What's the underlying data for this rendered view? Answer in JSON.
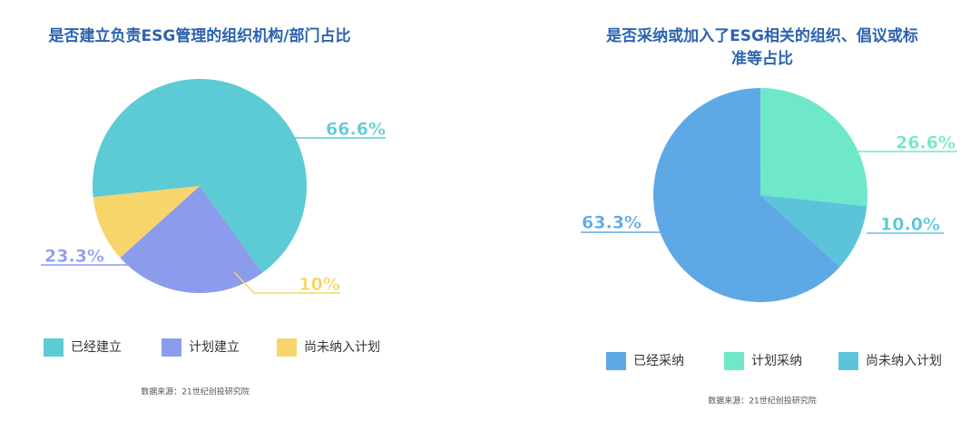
{
  "chart_data": [
    {
      "type": "pie",
      "title": "是否建立负责ESG管理的组织机构/部门占比",
      "categories": [
        "已经建立",
        "计划建立",
        "尚未纳入计划"
      ],
      "values": [
        66.6,
        23.3,
        10
      ],
      "value_labels": [
        "66.6%",
        "23.3%",
        "10%"
      ],
      "colors": [
        "#5ccbd6",
        "#8c9cec",
        "#f7d56a"
      ],
      "source": "数据来源：21世纪创投研究院"
    },
    {
      "type": "pie",
      "title": "是否采纳或加入了ESG相关的组织、倡议或标准等占比",
      "categories": [
        "已经采纳",
        "计划采纳",
        "尚未纳入计划"
      ],
      "values": [
        63.3,
        26.6,
        10.0
      ],
      "value_labels": [
        "63.3%",
        "26.6%",
        "10.0%"
      ],
      "colors": [
        "#5fa8e6",
        "#6ee8c8",
        "#5cc4d8"
      ],
      "source": "数据来源：21世纪创投研究院"
    }
  ]
}
